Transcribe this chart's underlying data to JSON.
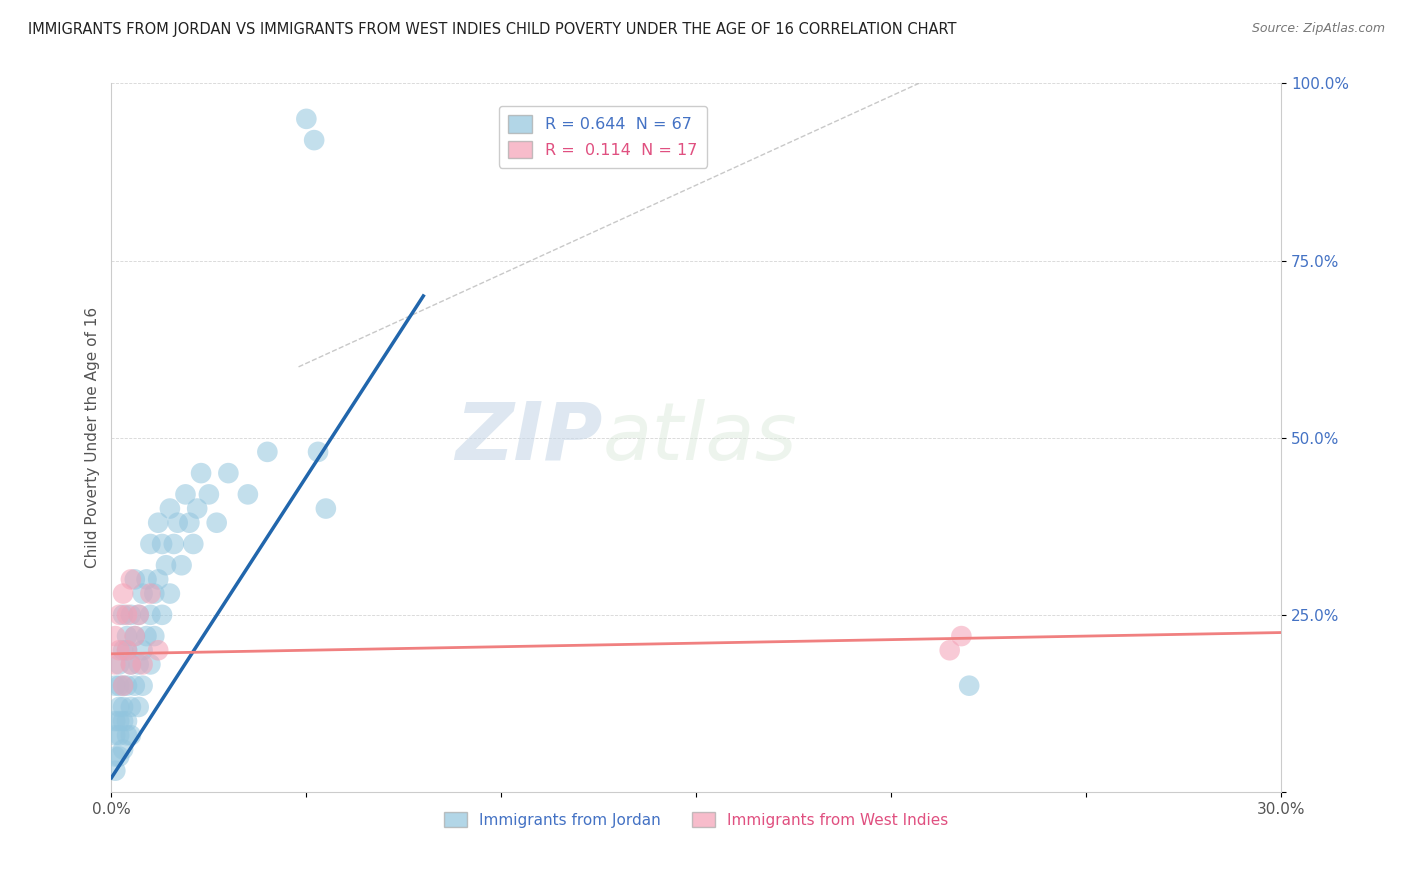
{
  "title": "IMMIGRANTS FROM JORDAN VS IMMIGRANTS FROM WEST INDIES CHILD POVERTY UNDER THE AGE OF 16 CORRELATION CHART",
  "source": "Source: ZipAtlas.com",
  "ylabel": "Child Poverty Under the Age of 16",
  "xlim": [
    0.0,
    0.3
  ],
  "ylim": [
    0.0,
    1.0
  ],
  "xticks": [
    0.0,
    0.05,
    0.1,
    0.15,
    0.2,
    0.25,
    0.3
  ],
  "yticks": [
    0.0,
    0.25,
    0.5,
    0.75,
    1.0
  ],
  "xtick_labels": [
    "0.0%",
    "",
    "",
    "",
    "",
    "",
    "30.0%"
  ],
  "ytick_labels": [
    "",
    "25.0%",
    "50.0%",
    "75.0%",
    "100.0%"
  ],
  "legend_jordan": "Immigrants from Jordan",
  "legend_wi": "Immigrants from West Indies",
  "jordan_R": "0.644",
  "jordan_N": "67",
  "wi_R": "0.114",
  "wi_N": "17",
  "jordan_color": "#92c5de",
  "wi_color": "#f4a0b5",
  "jordan_line_color": "#2166ac",
  "wi_line_color": "#f08080",
  "ref_line_color": "#bbbbbb",
  "background_color": "#ffffff",
  "watermark_zip": "ZIP",
  "watermark_atlas": "atlas",
  "jordan_x": [
    0.001,
    0.001,
    0.001,
    0.001,
    0.001,
    0.002,
    0.002,
    0.002,
    0.002,
    0.002,
    0.002,
    0.003,
    0.003,
    0.003,
    0.003,
    0.003,
    0.003,
    0.004,
    0.004,
    0.004,
    0.004,
    0.004,
    0.005,
    0.005,
    0.005,
    0.005,
    0.006,
    0.006,
    0.006,
    0.007,
    0.007,
    0.007,
    0.008,
    0.008,
    0.008,
    0.009,
    0.009,
    0.01,
    0.01,
    0.01,
    0.011,
    0.011,
    0.012,
    0.012,
    0.013,
    0.013,
    0.014,
    0.015,
    0.015,
    0.016,
    0.017,
    0.018,
    0.019,
    0.02,
    0.021,
    0.022,
    0.023,
    0.025,
    0.027,
    0.03,
    0.035,
    0.04,
    0.05,
    0.052,
    0.053,
    0.055,
    0.22
  ],
  "jordan_y": [
    0.05,
    0.08,
    0.1,
    0.15,
    0.03,
    0.08,
    0.12,
    0.15,
    0.05,
    0.1,
    0.18,
    0.1,
    0.15,
    0.2,
    0.06,
    0.12,
    0.25,
    0.08,
    0.15,
    0.2,
    0.1,
    0.22,
    0.12,
    0.18,
    0.25,
    0.08,
    0.15,
    0.22,
    0.3,
    0.18,
    0.25,
    0.12,
    0.2,
    0.28,
    0.15,
    0.22,
    0.3,
    0.25,
    0.18,
    0.35,
    0.28,
    0.22,
    0.3,
    0.38,
    0.25,
    0.35,
    0.32,
    0.28,
    0.4,
    0.35,
    0.38,
    0.32,
    0.42,
    0.38,
    0.35,
    0.4,
    0.45,
    0.42,
    0.38,
    0.45,
    0.42,
    0.48,
    0.95,
    0.92,
    0.48,
    0.4,
    0.15
  ],
  "wi_x": [
    0.001,
    0.001,
    0.002,
    0.002,
    0.003,
    0.003,
    0.004,
    0.004,
    0.005,
    0.005,
    0.006,
    0.007,
    0.008,
    0.01,
    0.012,
    0.215,
    0.218
  ],
  "wi_y": [
    0.18,
    0.22,
    0.2,
    0.25,
    0.15,
    0.28,
    0.2,
    0.25,
    0.18,
    0.3,
    0.22,
    0.25,
    0.18,
    0.28,
    0.2,
    0.2,
    0.22
  ],
  "jordan_line_x": [
    0.0,
    0.08
  ],
  "jordan_line_y": [
    0.02,
    0.7
  ],
  "wi_line_x": [
    0.0,
    0.3
  ],
  "wi_line_y": [
    0.195,
    0.225
  ],
  "ref_line_x": [
    0.048,
    0.215
  ],
  "ref_line_y": [
    0.6,
    1.02
  ]
}
